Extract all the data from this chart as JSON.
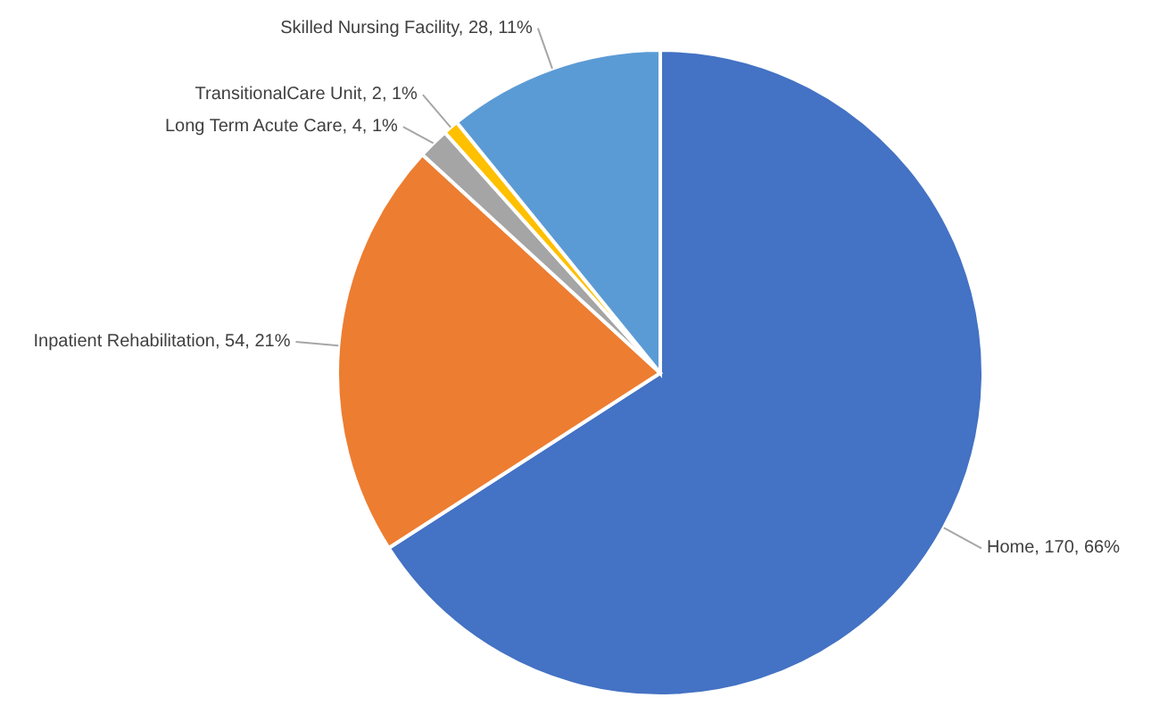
{
  "chart_data": {
    "type": "pie",
    "categories": [
      "Home",
      "Inpatient Rehabilitation",
      "Long Term Acute Care",
      "TransitionalCare Unit",
      "Skilled Nursing Facility"
    ],
    "values": [
      170,
      54,
      4,
      2,
      28
    ],
    "colors": [
      "#4472c4",
      "#ed7d31",
      "#a5a5a5",
      "#ffc000",
      "#5b9bd5"
    ],
    "value_labels": [
      "170, 66%",
      "54, 21%",
      "4, 1%",
      "2, 1%",
      "28, 11%"
    ]
  }
}
